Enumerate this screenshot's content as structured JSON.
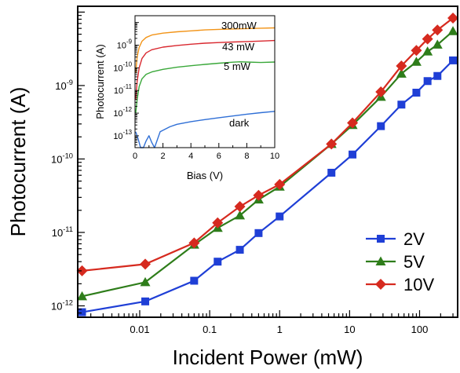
{
  "chart_data": [
    {
      "type": "line",
      "xlabel": "Incident Power (mW)",
      "ylabel": "Photocurrent (A)",
      "xscale": "log",
      "yscale": "log",
      "xlim": [
        0.0013,
        350
      ],
      "ylim": [
        7e-13,
        1.2e-08
      ],
      "x_ticks": [
        {
          "value": 0.01,
          "label": "0.01"
        },
        {
          "value": 0.1,
          "label": "0.1"
        },
        {
          "value": 1,
          "label": "1"
        },
        {
          "value": 10,
          "label": "10"
        },
        {
          "value": 100,
          "label": "100"
        }
      ],
      "y_ticks": [
        {
          "value": 1e-12,
          "label": "10",
          "exp": "-12"
        },
        {
          "value": 1e-11,
          "label": "10",
          "exp": "-11"
        },
        {
          "value": 1e-10,
          "label": "10",
          "exp": "-10"
        },
        {
          "value": 1e-09,
          "label": "10",
          "exp": "-9"
        }
      ],
      "legend_position": "bottom-right",
      "series": [
        {
          "name": "2V",
          "color": "#1f3fd6",
          "marker": "square",
          "x": [
            0.0015,
            0.012,
            0.06,
            0.13,
            0.27,
            0.5,
            1,
            5.5,
            11,
            28,
            55,
            90,
            130,
            180,
            300
          ],
          "y": [
            8.2e-13,
            1.15e-12,
            2.2e-12,
            4e-12,
            5.8e-12,
            9.8e-12,
            1.65e-11,
            6.5e-11,
            1.15e-10,
            2.8e-10,
            5.5e-10,
            8e-10,
            1.15e-09,
            1.35e-09,
            2.2e-09
          ]
        },
        {
          "name": "5V",
          "color": "#2e7d1a",
          "marker": "triangle",
          "x": [
            0.0015,
            0.012,
            0.06,
            0.13,
            0.27,
            0.5,
            1,
            5.5,
            11,
            28,
            55,
            90,
            130,
            180,
            300
          ],
          "y": [
            1.35e-12,
            2.1e-12,
            6.8e-12,
            1.15e-11,
            1.7e-11,
            2.8e-11,
            4.2e-11,
            1.6e-10,
            2.9e-10,
            7e-10,
            1.45e-09,
            2.1e-09,
            2.9e-09,
            3.6e-09,
            5.5e-09
          ]
        },
        {
          "name": "10V",
          "color": "#d62a1f",
          "marker": "diamond",
          "x": [
            0.0015,
            0.012,
            0.06,
            0.13,
            0.27,
            0.5,
            1,
            5.5,
            11,
            28,
            55,
            90,
            130,
            180,
            300
          ],
          "y": [
            3e-12,
            3.7e-12,
            7.2e-12,
            1.35e-11,
            2.25e-11,
            3.2e-11,
            4.5e-11,
            1.6e-10,
            3.1e-10,
            8.2e-10,
            1.85e-09,
            3e-09,
            4.3e-09,
            5.7e-09,
            8.3e-09
          ]
        }
      ]
    },
    {
      "type": "line",
      "xlabel": "Bias (V)",
      "ylabel": "Photocurrent (A)",
      "yscale": "log",
      "xlim": [
        0,
        10
      ],
      "ylim": [
        3e-14,
        2e-08
      ],
      "x_ticks": [
        0,
        2,
        4,
        6,
        8,
        10
      ],
      "y_ticks": [
        {
          "value": 1e-13,
          "label": "10",
          "exp": "-13"
        },
        {
          "value": 1e-12,
          "label": "10",
          "exp": "-12"
        },
        {
          "value": 1e-11,
          "label": "10",
          "exp": "-11"
        },
        {
          "value": 1e-10,
          "label": "10",
          "exp": "-10"
        },
        {
          "value": 1e-09,
          "label": "10",
          "exp": "-9"
        }
      ],
      "series": [
        {
          "name": "300mW",
          "color": "#f29418",
          "x": [
            0.05,
            0.15,
            0.3,
            0.5,
            0.8,
            1.2,
            2,
            3,
            4,
            5,
            6,
            7,
            8,
            9,
            10
          ],
          "y": [
            6e-11,
            3e-10,
            8e-10,
            1.5e-09,
            2.2e-09,
            2.8e-09,
            3.4e-09,
            3.9e-09,
            4.3e-09,
            4.7e-09,
            5e-09,
            5.2e-09,
            5.4e-09,
            5.6e-09,
            5.8e-09
          ]
        },
        {
          "name": "43 mW",
          "color": "#d9282f",
          "x": [
            0.05,
            0.15,
            0.3,
            0.5,
            0.8,
            1.2,
            2,
            3,
            4,
            5,
            6,
            7,
            8,
            9,
            10
          ],
          "y": [
            4e-12,
            2.5e-11,
            1e-10,
            2.6e-10,
            4.6e-10,
            6.3e-10,
            8.2e-10,
            9.7e-10,
            1.1e-09,
            1.22e-09,
            1.3e-09,
            1.38e-09,
            1.45e-09,
            1.52e-09,
            1.6e-09
          ]
        },
        {
          "name": "5 mW",
          "color": "#3aa83a",
          "x": [
            0.05,
            0.15,
            0.3,
            0.5,
            0.8,
            1.2,
            2,
            3,
            4,
            5,
            6,
            7,
            7.5,
            8,
            9,
            10
          ],
          "y": [
            1e-12,
            4e-12,
            1.5e-11,
            3.3e-11,
            5.2e-11,
            6.6e-11,
            8.6e-11,
            1.06e-10,
            1.24e-10,
            1.42e-10,
            1.6e-10,
            1.78e-10,
            1.85e-10,
            1.8e-10,
            1.72e-10,
            1.8e-10
          ]
        },
        {
          "name": "dark",
          "color": "#2f6fd6",
          "x": [
            0.05,
            0.2,
            0.4,
            0.6,
            0.8,
            1.0,
            1.2,
            1.4,
            1.8,
            2.5,
            3,
            4,
            5,
            6,
            7,
            8,
            9,
            10
          ],
          "y": [
            1.5e-13,
            8e-14,
            3e-14,
            3e-14,
            6e-14,
            1e-13,
            5e-14,
            3e-14,
            1.5e-13,
            2.5e-13,
            3.2e-13,
            4.2e-13,
            5.2e-13,
            6.3e-13,
            7.5e-13,
            9e-13,
            1.05e-12,
            1.2e-12
          ]
        }
      ]
    }
  ]
}
